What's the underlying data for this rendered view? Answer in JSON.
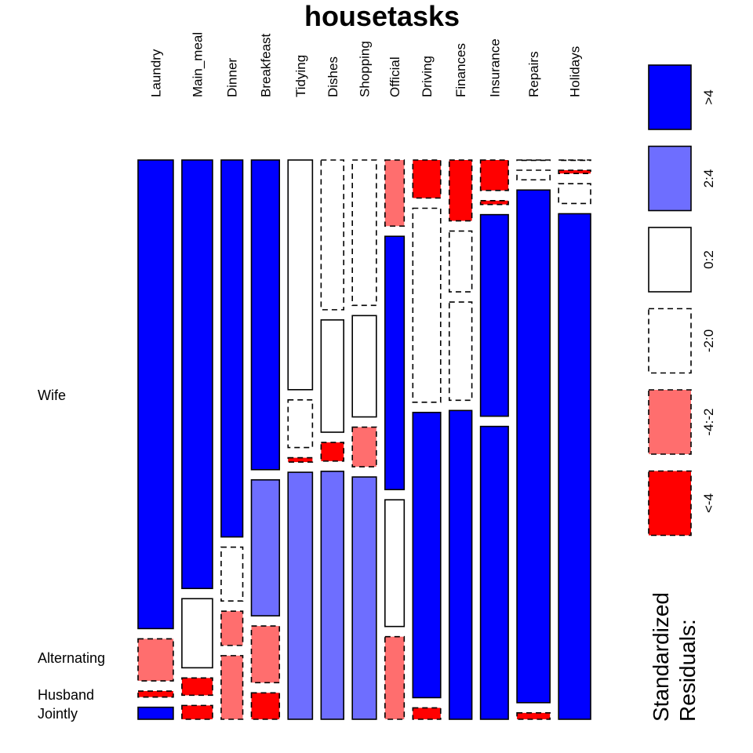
{
  "chart_data": {
    "type": "mosaic",
    "title": "housetasks",
    "columns": [
      "Laundry",
      "Main_meal",
      "Dinner",
      "Breakfeast",
      "Tidying",
      "Dishes",
      "Shopping",
      "Official",
      "Driving",
      "Finances",
      "Insurance",
      "Repairs",
      "Holidays"
    ],
    "rows": [
      "Wife",
      "Alternating",
      "Husband",
      "Jointly"
    ],
    "counts": [
      [
        156,
        14,
        2,
        4
      ],
      [
        124,
        20,
        5,
        4
      ],
      [
        77,
        11,
        7,
        13
      ],
      [
        82,
        36,
        15,
        7
      ],
      [
        53,
        11,
        1,
        57
      ],
      [
        32,
        24,
        4,
        53
      ],
      [
        33,
        23,
        9,
        55
      ],
      [
        12,
        46,
        23,
        15
      ],
      [
        10,
        51,
        75,
        3
      ],
      [
        13,
        13,
        21,
        66
      ],
      [
        8,
        1,
        53,
        77
      ],
      [
        0,
        3,
        160,
        2
      ],
      [
        0,
        1,
        6,
        153
      ]
    ],
    "residual_bins": [
      {
        "label": ">4",
        "fill": "#0000ff",
        "dashed": false
      },
      {
        "label": "2:4",
        "fill": "#6e6eff",
        "dashed": false
      },
      {
        "label": "0:2",
        "fill": "#ffffff",
        "dashed": false
      },
      {
        "label": "-2:0",
        "fill": "#ffffff",
        "dashed": true
      },
      {
        "label": "-4:-2",
        "fill": "#ff6e6e",
        "dashed": true
      },
      {
        "label": "<-4",
        "fill": "#ff0000",
        "dashed": true
      }
    ],
    "cell_bins": [
      [
        0,
        4,
        5,
        0
      ],
      [
        0,
        2,
        5,
        5
      ],
      [
        0,
        3,
        4,
        4
      ],
      [
        0,
        1,
        4,
        5
      ],
      [
        2,
        3,
        5,
        1
      ],
      [
        3,
        2,
        5,
        1
      ],
      [
        3,
        2,
        4,
        1
      ],
      [
        4,
        0,
        2,
        4
      ],
      [
        5,
        3,
        0,
        5
      ],
      [
        5,
        3,
        3,
        0
      ],
      [
        5,
        5,
        0,
        0
      ],
      [
        3,
        3,
        0,
        5
      ],
      [
        3,
        5,
        3,
        0
      ]
    ],
    "legend_title": [
      "Standardized",
      "Residuals:"
    ],
    "legend_position": "right"
  }
}
